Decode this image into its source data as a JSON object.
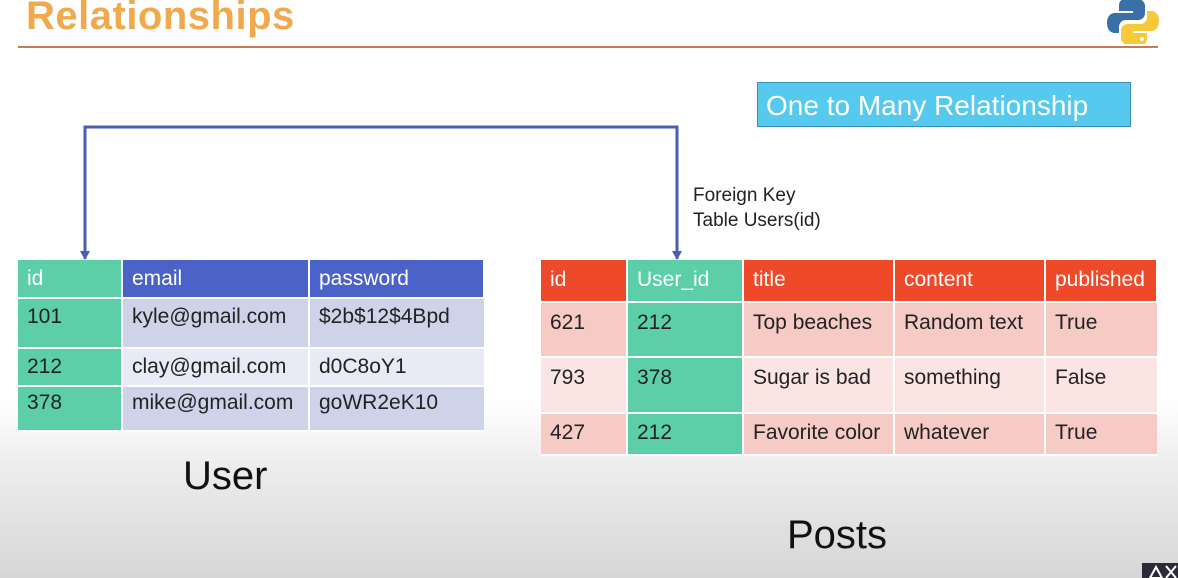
{
  "slide": {
    "title": "Relationships",
    "badge": "One to Many Relationship",
    "foreign_key_label": [
      "Foreign Key",
      "Table Users(id)"
    ],
    "logo_icon": "python-logo-icon",
    "colors": {
      "title": "#f1a94e",
      "badge": "#56c9ef",
      "key_column": "#5ccfa9",
      "user_header": "#4b63c9",
      "posts_header": "#ee4a2a",
      "connector": "#4a5fb3"
    }
  },
  "user_table": {
    "caption": "User",
    "columns": [
      "id",
      "email",
      "password"
    ],
    "rows": [
      [
        "101",
        "kyle@gmail.com",
        "$2b$12$4Bpd"
      ],
      [
        "212",
        "clay@gmail.com",
        "d0C8oY1"
      ],
      [
        "378",
        "mike@gmail.com",
        "goWR2eK10"
      ]
    ]
  },
  "posts_table": {
    "caption": "Posts",
    "columns": [
      "id",
      "User_id",
      "title",
      "content",
      "published"
    ],
    "rows": [
      [
        "621",
        "212",
        "Top beaches",
        "Random text",
        "True"
      ],
      [
        "793",
        "378",
        "Sugar is bad",
        "something",
        "False"
      ],
      [
        "427",
        "212",
        "Favorite color",
        "whatever",
        "True"
      ]
    ]
  }
}
